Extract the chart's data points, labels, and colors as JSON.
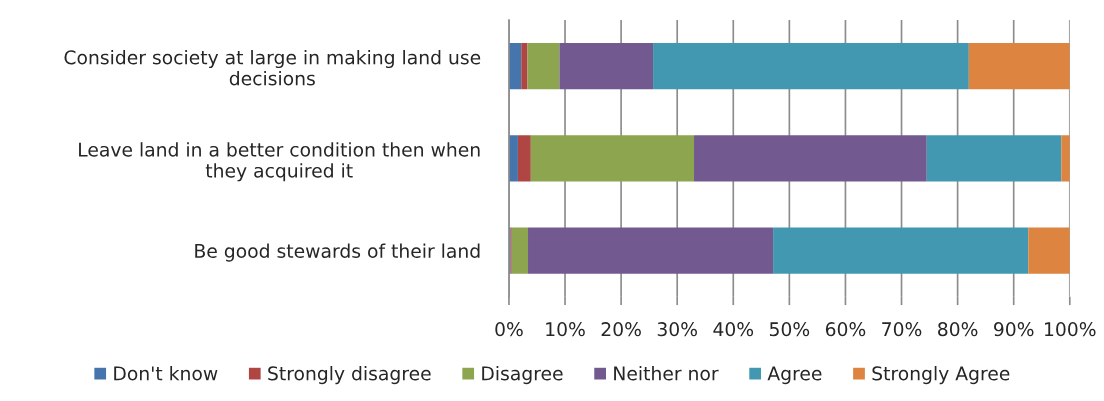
{
  "chart_data": {
    "type": "bar",
    "orientation": "horizontal",
    "stacked": true,
    "categories": [
      "Consider society at large in making land use\ndecisions",
      "Leave land in a better condition then when\nthey acquired it",
      "Be good stewards of their land"
    ],
    "series": [
      {
        "name": "Don't know",
        "color": "#4675ae",
        "values": [
          2.2,
          1.6,
          0.3
        ]
      },
      {
        "name": "Strongly disagree",
        "color": "#b04644",
        "values": [
          1.1,
          2.3,
          0.2
        ]
      },
      {
        "name": "Disagree",
        "color": "#8ca54e",
        "values": [
          5.7,
          29.1,
          2.9
        ]
      },
      {
        "name": "Neither nor",
        "color": "#725a90",
        "values": [
          16.7,
          41.5,
          43.7
        ]
      },
      {
        "name": "Agree",
        "color": "#4298b0",
        "values": [
          56.3,
          24.0,
          45.5
        ]
      },
      {
        "name": "Strongly Agree",
        "color": "#dc8440",
        "values": [
          18.0,
          1.5,
          7.4
        ]
      }
    ],
    "xlim": [
      0,
      100
    ],
    "xticks": [
      {
        "value": 0,
        "label": "0%"
      },
      {
        "value": 10,
        "label": "10%"
      },
      {
        "value": 20,
        "label": "20%"
      },
      {
        "value": 30,
        "label": "30%"
      },
      {
        "value": 40,
        "label": "40%"
      },
      {
        "value": 50,
        "label": "50%"
      },
      {
        "value": 60,
        "label": "60%"
      },
      {
        "value": 70,
        "label": "70%"
      },
      {
        "value": 80,
        "label": "80%"
      },
      {
        "value": 90,
        "label": "90%"
      },
      {
        "value": 100,
        "label": "100%"
      }
    ],
    "grid": "x",
    "legend": "bottom"
  }
}
